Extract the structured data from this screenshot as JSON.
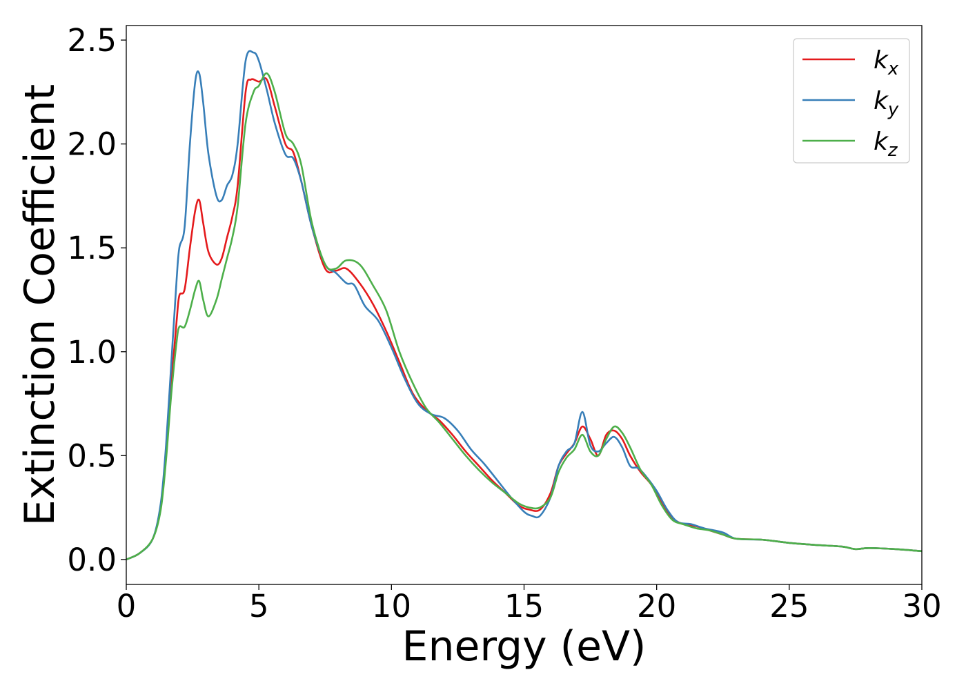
{
  "chart_data": {
    "type": "line",
    "title": "",
    "xlabel": "Energy (eV)",
    "ylabel": "Extinction Coefficient",
    "xlim": [
      0,
      30
    ],
    "ylim": [
      -0.12,
      2.57
    ],
    "xticks": [
      0,
      5,
      10,
      15,
      20,
      25,
      30
    ],
    "yticks": [
      0.0,
      0.5,
      1.0,
      1.5,
      2.0,
      2.5
    ],
    "xtick_labels": [
      "0",
      "5",
      "10",
      "15",
      "20",
      "25",
      "30"
    ],
    "ytick_labels": [
      "0.0",
      "0.5",
      "1.0",
      "1.5",
      "2.0",
      "2.5"
    ],
    "grid": false,
    "legend": "top-right",
    "series": [
      {
        "name": "k",
        "subscript": "x",
        "color": "#e41a1c",
        "x": [
          0,
          0.5,
          1.0,
          1.3,
          1.5,
          1.7,
          1.9,
          2.0,
          2.2,
          2.4,
          2.6,
          2.75,
          2.9,
          3.1,
          3.4,
          3.6,
          3.8,
          4.0,
          4.2,
          4.5,
          4.7,
          5.0,
          5.3,
          5.6,
          6.0,
          6.3,
          6.6,
          7.0,
          7.5,
          7.9,
          8.3,
          8.8,
          9.3,
          9.8,
          10.3,
          10.8,
          11.3,
          11.8,
          12.3,
          12.8,
          13.3,
          13.8,
          14.3,
          14.8,
          15.2,
          15.6,
          16.0,
          16.3,
          16.6,
          16.9,
          17.2,
          17.5,
          17.8,
          18.1,
          18.4,
          18.7,
          19.0,
          19.4,
          19.8,
          20.2,
          20.6,
          21.0,
          21.5,
          22.0,
          22.5,
          23.0,
          24.0,
          25.0,
          26.0,
          27.0,
          27.5,
          28.0,
          29.0,
          30.0
        ],
        "values": [
          0.0,
          0.03,
          0.1,
          0.25,
          0.5,
          0.85,
          1.15,
          1.27,
          1.3,
          1.5,
          1.68,
          1.73,
          1.62,
          1.48,
          1.42,
          1.45,
          1.55,
          1.65,
          1.8,
          2.25,
          2.31,
          2.3,
          2.31,
          2.18,
          2.0,
          1.96,
          1.82,
          1.6,
          1.4,
          1.39,
          1.4,
          1.33,
          1.23,
          1.1,
          0.95,
          0.8,
          0.72,
          0.67,
          0.6,
          0.52,
          0.45,
          0.38,
          0.32,
          0.26,
          0.24,
          0.24,
          0.32,
          0.45,
          0.51,
          0.56,
          0.64,
          0.58,
          0.5,
          0.6,
          0.62,
          0.58,
          0.5,
          0.42,
          0.36,
          0.27,
          0.2,
          0.17,
          0.16,
          0.14,
          0.12,
          0.1,
          0.095,
          0.08,
          0.07,
          0.062,
          0.05,
          0.055,
          0.05,
          0.04
        ]
      },
      {
        "name": "k",
        "subscript": "y",
        "color": "#377eb8",
        "x": [
          0,
          0.5,
          1.0,
          1.3,
          1.5,
          1.7,
          1.9,
          2.0,
          2.2,
          2.4,
          2.6,
          2.75,
          2.9,
          3.1,
          3.4,
          3.6,
          3.8,
          4.0,
          4.2,
          4.5,
          4.8,
          5.0,
          5.3,
          5.6,
          6.0,
          6.3,
          6.6,
          7.0,
          7.5,
          7.9,
          8.3,
          8.6,
          9.0,
          9.5,
          10.0,
          10.5,
          11.0,
          11.5,
          12.0,
          12.5,
          13.0,
          13.5,
          14.0,
          14.5,
          15.0,
          15.3,
          15.6,
          16.0,
          16.3,
          16.6,
          16.9,
          17.2,
          17.5,
          17.8,
          18.1,
          18.4,
          18.7,
          19.0,
          19.3,
          19.6,
          20.0,
          20.4,
          20.8,
          21.3,
          21.8,
          22.5,
          23.0,
          24.0,
          25.0,
          26.0,
          27.0,
          27.5,
          28.0,
          29.0,
          30.0
        ],
        "values": [
          0.0,
          0.03,
          0.1,
          0.27,
          0.55,
          0.95,
          1.35,
          1.5,
          1.6,
          2.0,
          2.3,
          2.34,
          2.2,
          1.95,
          1.75,
          1.73,
          1.8,
          1.85,
          2.0,
          2.4,
          2.44,
          2.4,
          2.26,
          2.1,
          1.95,
          1.93,
          1.82,
          1.6,
          1.42,
          1.38,
          1.33,
          1.32,
          1.22,
          1.15,
          1.02,
          0.87,
          0.75,
          0.7,
          0.68,
          0.62,
          0.53,
          0.46,
          0.38,
          0.3,
          0.23,
          0.21,
          0.21,
          0.3,
          0.45,
          0.52,
          0.56,
          0.71,
          0.55,
          0.52,
          0.56,
          0.59,
          0.54,
          0.45,
          0.44,
          0.4,
          0.33,
          0.24,
          0.18,
          0.17,
          0.15,
          0.13,
          0.1,
          0.095,
          0.08,
          0.07,
          0.062,
          0.05,
          0.055,
          0.05,
          0.04
        ]
      },
      {
        "name": "k",
        "subscript": "z",
        "color": "#4daf4a",
        "x": [
          0,
          0.5,
          1.0,
          1.3,
          1.5,
          1.7,
          1.9,
          2.0,
          2.2,
          2.4,
          2.6,
          2.75,
          2.9,
          3.1,
          3.4,
          3.6,
          3.8,
          4.0,
          4.2,
          4.5,
          4.8,
          5.0,
          5.3,
          5.6,
          6.0,
          6.3,
          6.6,
          7.0,
          7.5,
          7.9,
          8.3,
          8.8,
          9.3,
          9.8,
          10.3,
          10.8,
          11.3,
          11.8,
          12.3,
          12.8,
          13.3,
          13.8,
          14.3,
          14.8,
          15.2,
          15.6,
          16.0,
          16.3,
          16.6,
          16.9,
          17.2,
          17.5,
          17.8,
          18.1,
          18.4,
          18.7,
          19.0,
          19.4,
          19.8,
          20.2,
          20.6,
          21.0,
          21.5,
          22.0,
          22.5,
          23.0,
          24.0,
          25.0,
          26.0,
          27.0,
          27.5,
          28.0,
          29.0,
          30.0
        ],
        "values": [
          0.0,
          0.03,
          0.1,
          0.24,
          0.48,
          0.8,
          1.05,
          1.12,
          1.12,
          1.2,
          1.3,
          1.34,
          1.25,
          1.17,
          1.25,
          1.35,
          1.45,
          1.55,
          1.7,
          2.1,
          2.25,
          2.28,
          2.34,
          2.25,
          2.05,
          2.0,
          1.9,
          1.62,
          1.42,
          1.4,
          1.44,
          1.42,
          1.32,
          1.2,
          1.0,
          0.85,
          0.73,
          0.66,
          0.58,
          0.5,
          0.43,
          0.37,
          0.32,
          0.27,
          0.25,
          0.25,
          0.3,
          0.42,
          0.49,
          0.53,
          0.6,
          0.52,
          0.5,
          0.58,
          0.64,
          0.61,
          0.54,
          0.43,
          0.36,
          0.26,
          0.19,
          0.17,
          0.15,
          0.14,
          0.12,
          0.1,
          0.095,
          0.08,
          0.07,
          0.062,
          0.05,
          0.055,
          0.05,
          0.04
        ]
      }
    ]
  }
}
